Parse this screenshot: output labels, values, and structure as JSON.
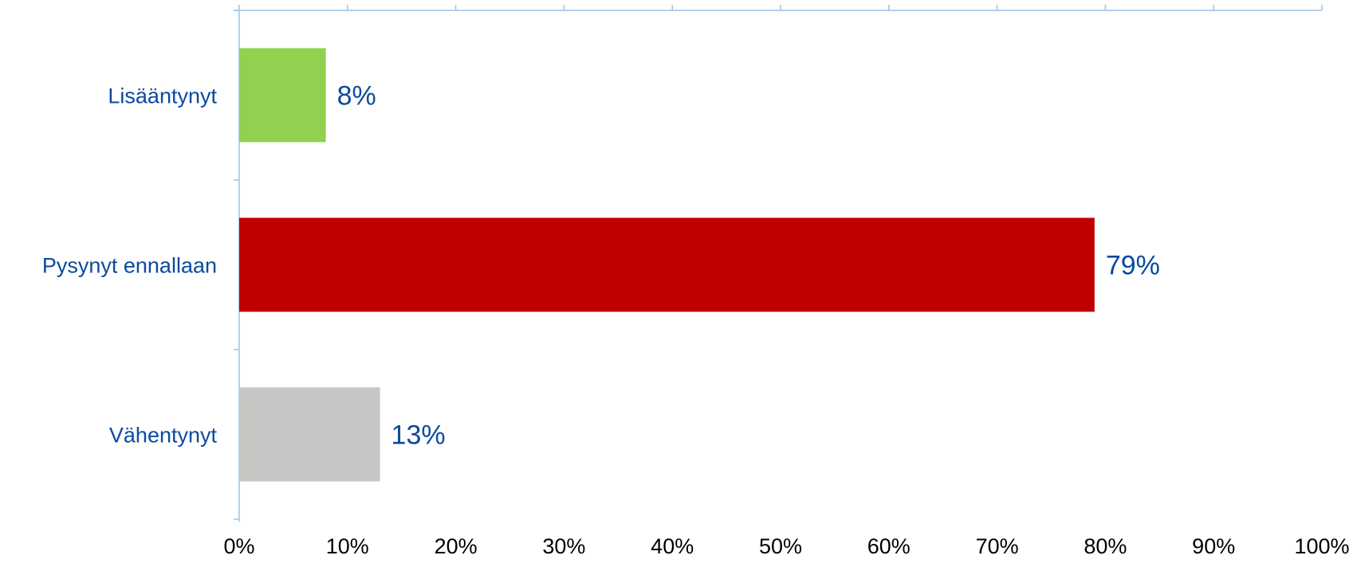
{
  "chart_data": {
    "type": "bar",
    "orientation": "horizontal",
    "categories": [
      "Lisääntynyt",
      "Pysynyt ennallaan",
      "Vähentynyt"
    ],
    "values": [
      8,
      79,
      13
    ],
    "value_labels": [
      "8%",
      "79%",
      "13%"
    ],
    "bar_colors": [
      "#92d050",
      "#c00000",
      "#c6c6c4"
    ],
    "xlim": [
      0,
      100
    ],
    "x_ticks": [
      0,
      10,
      20,
      30,
      40,
      50,
      60,
      70,
      80,
      90,
      100
    ],
    "x_tick_labels": [
      "0%",
      "10%",
      "20%",
      "30%",
      "40%",
      "50%",
      "60%",
      "70%",
      "80%",
      "90%",
      "100%"
    ],
    "x_axis_position": "top",
    "x_tick_labels_position": "bottom",
    "grid": false,
    "legend": "none",
    "axis_color": "#9dc3e6",
    "label_color": "#0b4aa0",
    "title": "",
    "xlabel": "",
    "ylabel": ""
  }
}
